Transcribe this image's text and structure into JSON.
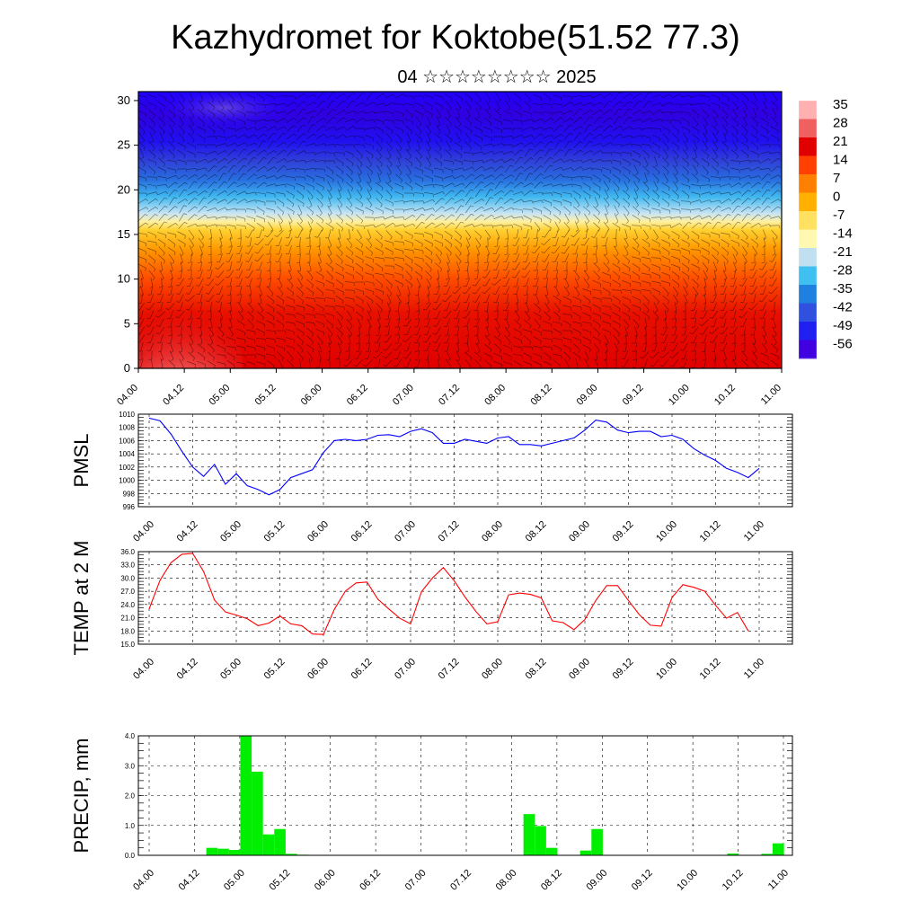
{
  "title": "Kazhydromet for Koktobe(51.52 77.3)",
  "subtitle": "04 ☆☆☆☆☆☆☆☆ 2025",
  "time_ticks": [
    "04.00",
    "04.12",
    "05.00",
    "05.12",
    "06.00",
    "06.12",
    "07.00",
    "07.12",
    "08.00",
    "08.12",
    "09.00",
    "09.12",
    "10.00",
    "10.12",
    "11.00"
  ],
  "colors": {
    "pmsl_line": "#0000ff",
    "temp_line": "#ff0000",
    "precip_bar": "#00ee00",
    "colorbar": [
      "#ffb0b0",
      "#f06060",
      "#e00000",
      "#ff4000",
      "#ff8000",
      "#ffb000",
      "#ffe060",
      "#fff8b0",
      "#c0e0f0",
      "#40c0f0",
      "#2080e0",
      "#3050e0",
      "#2020f0",
      "#4000e0"
    ]
  },
  "chart_data": [
    {
      "type": "heatmap",
      "name": "upper-air-cross-section",
      "ylim": [
        0,
        31
      ],
      "yticks": [
        0,
        5,
        10,
        15,
        20,
        25,
        30
      ],
      "colorbar_labels": [
        "35",
        "28",
        "21",
        "14",
        "7",
        "0",
        "-7",
        "-14",
        "-21",
        "-28",
        "-35",
        "-42",
        "-49",
        "-56"
      ],
      "layers": [
        {
          "z_top": 31,
          "value": -56
        },
        {
          "z_top": 23,
          "value": -49
        },
        {
          "z_top": 20,
          "value": -35
        },
        {
          "z_top": 17,
          "value": -14
        },
        {
          "z_top": 15,
          "value": 7
        },
        {
          "z_top": 12,
          "value": 21
        },
        {
          "z_top": 8,
          "value": 28
        }
      ]
    },
    {
      "type": "line",
      "ylabel": "PMSL",
      "ylim": [
        996,
        1010
      ],
      "yticks": [
        "996",
        "998",
        "1000",
        "1002",
        "1004",
        "1006",
        "1008",
        "1010"
      ],
      "x_hours_step": 3,
      "values": [
        1009.4,
        1009.0,
        1007.0,
        1004.4,
        1002.0,
        1000.6,
        1002.4,
        999.4,
        1001.0,
        999.2,
        998.6,
        997.8,
        998.6,
        1000.4,
        1001.0,
        1001.6,
        1004.2,
        1006.0,
        1006.2,
        1006.0,
        1006.2,
        1006.8,
        1006.9,
        1006.6,
        1007.4,
        1007.8,
        1007.2,
        1005.6,
        1005.6,
        1006.2,
        1005.9,
        1005.6,
        1006.4,
        1006.6,
        1005.4,
        1005.4,
        1005.2,
        1005.6,
        1006.0,
        1006.4,
        1007.6,
        1009.1,
        1008.8,
        1007.6,
        1007.2,
        1007.4,
        1007.4,
        1006.6,
        1006.8,
        1006.2,
        1004.8,
        1003.8,
        1003.0,
        1001.8,
        1001.2,
        1000.4,
        1001.8
      ]
    },
    {
      "type": "line",
      "ylabel": "TEMP at 2 M",
      "ylim": [
        15,
        36
      ],
      "yticks": [
        "15.0",
        "18.0",
        "21.0",
        "24.0",
        "27.0",
        "30.0",
        "33.0",
        "36.0"
      ],
      "x_hours_step": 3,
      "values": [
        23.0,
        29.5,
        33.5,
        35.4,
        35.6,
        31.5,
        25.0,
        22.3,
        21.6,
        20.8,
        19.2,
        19.8,
        21.4,
        19.6,
        19.2,
        17.3,
        17.2,
        22.9,
        27.0,
        28.9,
        29.1,
        25.2,
        23.0,
        20.9,
        19.6,
        26.9,
        30.0,
        32.4,
        29.4,
        25.7,
        22.4,
        19.6,
        20.1,
        26.2,
        26.6,
        26.3,
        25.5,
        20.3,
        19.9,
        18.3,
        20.6,
        24.9,
        28.3,
        28.3,
        24.9,
        21.7,
        19.3,
        19.1,
        25.6,
        28.5,
        27.9,
        27.0,
        23.8,
        20.9,
        22.2,
        18.0
      ]
    },
    {
      "type": "bar",
      "ylabel": "PRECIP, mm",
      "ylim": [
        0,
        4
      ],
      "yticks": [
        "0.0",
        "1.0",
        "2.0",
        "3.0",
        "4.0"
      ],
      "x_hours_step": 3,
      "values": [
        0,
        0,
        0,
        0,
        0,
        0,
        0.25,
        0.22,
        0.18,
        4.0,
        2.8,
        0.7,
        0.88,
        0.05,
        0.02,
        0,
        0,
        0,
        0,
        0,
        0,
        0,
        0,
        0,
        0,
        0,
        0,
        0,
        0,
        0,
        0,
        0,
        0,
        0,
        1.38,
        0.98,
        0.25,
        0,
        0,
        0.16,
        0.88,
        0,
        0,
        0,
        0,
        0,
        0,
        0,
        0,
        0,
        0,
        0,
        0.06,
        0,
        0,
        0.05,
        0.4
      ]
    }
  ]
}
